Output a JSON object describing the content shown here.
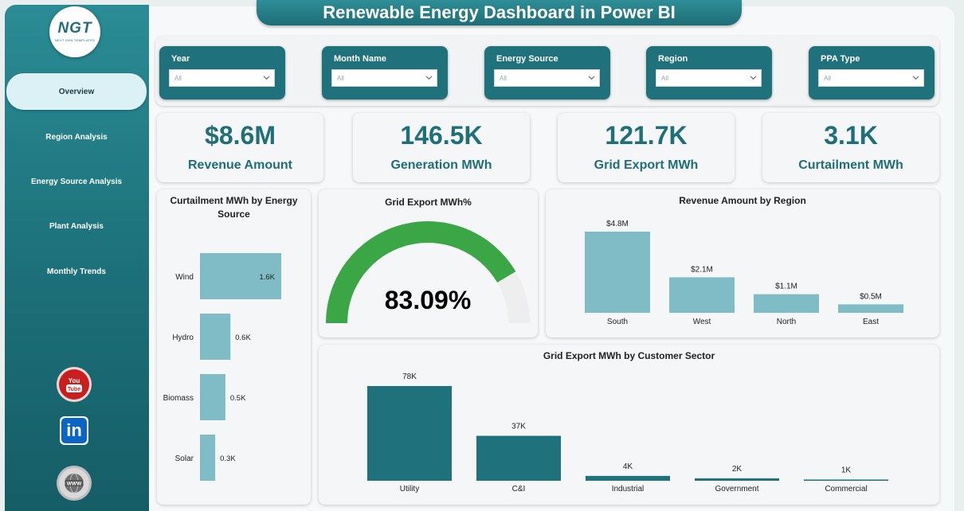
{
  "app": {
    "title": "Renewable Energy Dashboard in Power BI"
  },
  "logo": {
    "mark": "NGT",
    "tagline": "NEXT GEN TEMPLATES"
  },
  "nav": [
    {
      "label": "Overview",
      "active": true
    },
    {
      "label": "Region Analysis"
    },
    {
      "label": "Energy Source Analysis"
    },
    {
      "label": "Plant Analysis"
    },
    {
      "label": "Monthly Trends"
    }
  ],
  "social": [
    {
      "icon": "youtube-icon",
      "text": "You Tube",
      "color": "#d32020"
    },
    {
      "icon": "linkedin-icon",
      "text": "in",
      "color": "#0a66c2"
    },
    {
      "icon": "globe-icon",
      "text": "WWW",
      "color": "#777777"
    }
  ],
  "filters": [
    {
      "label": "Year",
      "value": "All"
    },
    {
      "label": "Month Name",
      "value": "All"
    },
    {
      "label": "Energy Source",
      "value": "All"
    },
    {
      "label": "Region",
      "value": "All"
    },
    {
      "label": "PPA Type",
      "value": "All"
    }
  ],
  "kpis": [
    {
      "value": "$8.6M",
      "label": "Revenue Amount"
    },
    {
      "value": "146.5K",
      "label": "Generation MWh"
    },
    {
      "value": "121.7K",
      "label": "Grid Export MWh"
    },
    {
      "value": "3.1K",
      "label": "Curtailment MWh"
    }
  ],
  "colors": {
    "teal_dark": "#1f727b",
    "teal_light": "#7fbcc6",
    "gauge_fill": "#3aa646",
    "gauge_track": "#eeeeee"
  },
  "chart_data": [
    {
      "type": "bar",
      "orientation": "horizontal",
      "title": "Curtailment MWh by Energy Source",
      "categories": [
        "Wind",
        "Hydro",
        "Biomass",
        "Solar"
      ],
      "values": [
        1.6,
        0.6,
        0.5,
        0.3
      ],
      "value_labels": [
        "1.6K",
        "0.6K",
        "0.5K",
        "0.3K"
      ],
      "unit": "K MWh"
    },
    {
      "type": "gauge",
      "title": "Grid Export MWh%",
      "value": 83.09,
      "value_label": "83.09%",
      "range": [
        0,
        100
      ]
    },
    {
      "type": "bar",
      "title": "Revenue Amount by Region",
      "categories": [
        "South",
        "West",
        "North",
        "East"
      ],
      "values": [
        4.8,
        2.1,
        1.1,
        0.5
      ],
      "value_labels": [
        "$4.8M",
        "$2.1M",
        "$1.1M",
        "$0.5M"
      ],
      "unit": "$M"
    },
    {
      "type": "bar",
      "title": "Grid Export MWh by Customer Sector",
      "categories": [
        "Utility",
        "C&I",
        "Industrial",
        "Government",
        "Commercial"
      ],
      "values": [
        78,
        37,
        4,
        2,
        1
      ],
      "value_labels": [
        "78K",
        "37K",
        "4K",
        "2K",
        "1K"
      ],
      "unit": "K MWh"
    }
  ]
}
